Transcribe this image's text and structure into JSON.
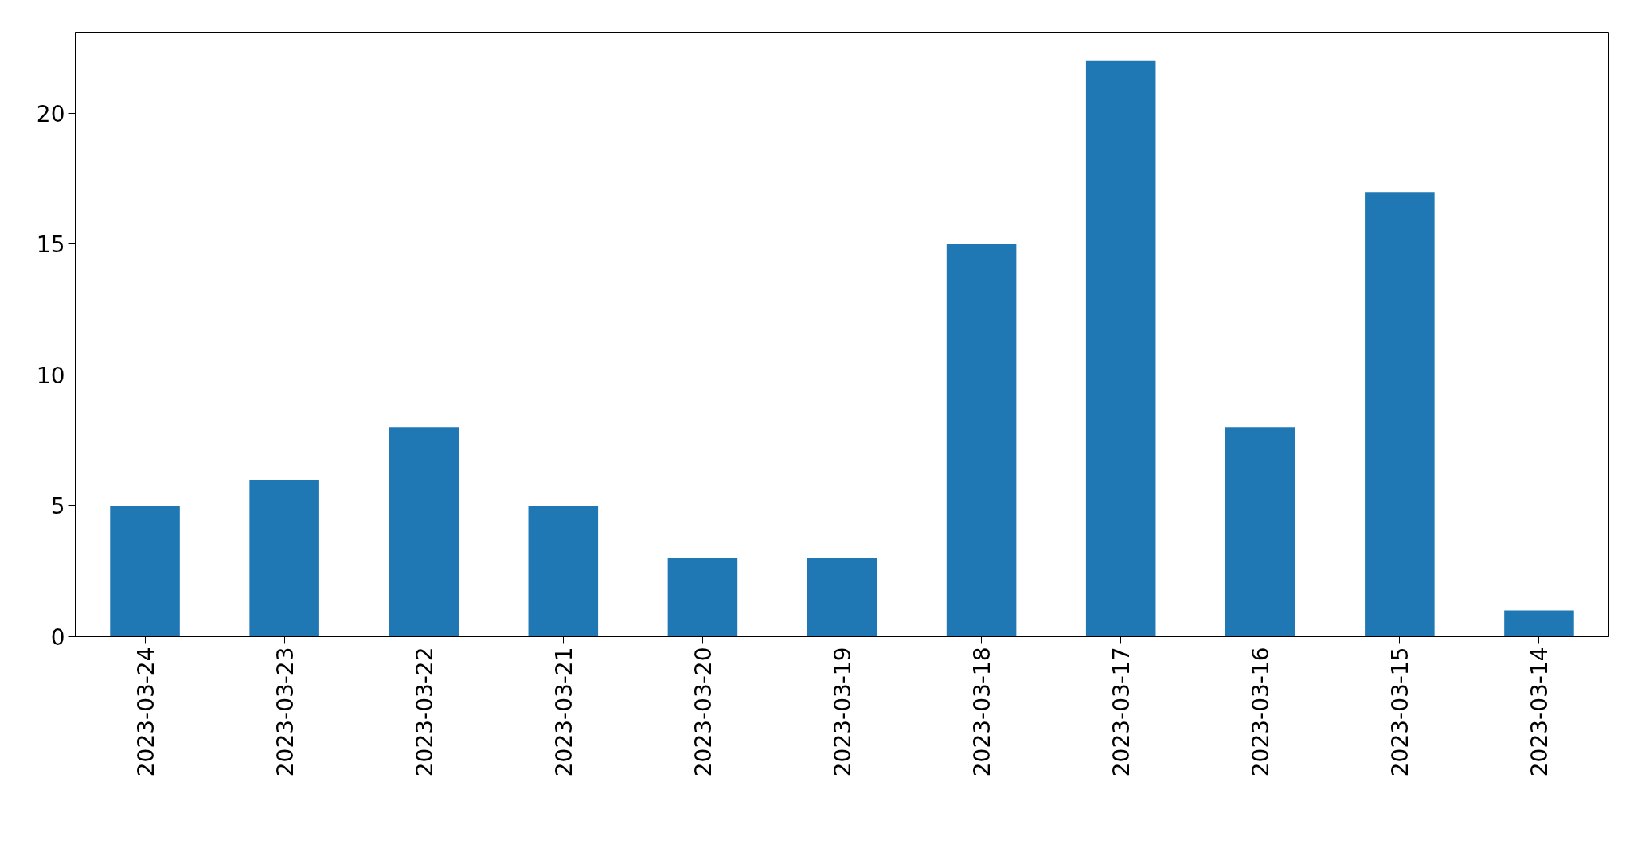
{
  "chart_data": {
    "type": "bar",
    "categories": [
      "2023-03-24",
      "2023-03-23",
      "2023-03-22",
      "2023-03-21",
      "2023-03-20",
      "2023-03-19",
      "2023-03-18",
      "2023-03-17",
      "2023-03-16",
      "2023-03-15",
      "2023-03-14"
    ],
    "values": [
      5,
      6,
      8,
      5,
      3,
      3,
      15,
      22,
      8,
      17,
      1
    ],
    "color": "#1f77b4",
    "ylim": [
      0,
      23.1
    ],
    "yticks": [
      0,
      5,
      10,
      15,
      20
    ],
    "grid": false
  }
}
